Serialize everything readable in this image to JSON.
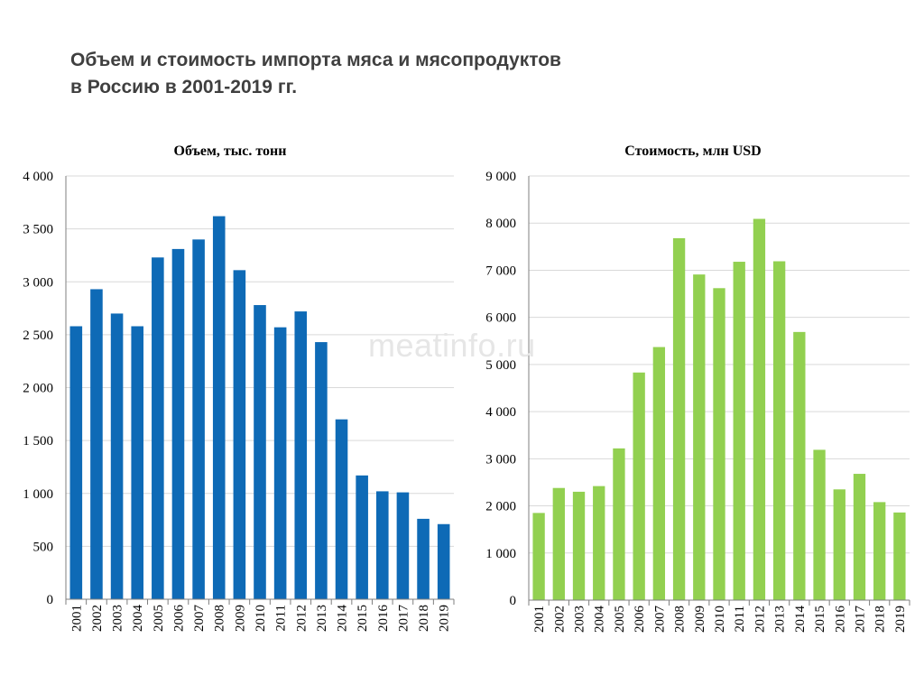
{
  "page": {
    "title_line1": "Объем и стоимость импорта мяса и мясопродуктов",
    "title_line2": "в Россию в 2001-2019 гг.",
    "watermark": "meatinfo.ru"
  },
  "colors": {
    "volume": "#0e6ab6",
    "value": "#92d050",
    "grid": "#d9d9d9",
    "axis": "#7f7f7f",
    "text": "#000000"
  },
  "chart_data": [
    {
      "type": "bar",
      "title": "Объем, тыс. тонн",
      "categories": [
        "2001",
        "2002",
        "2003",
        "2004",
        "2005",
        "2006",
        "2007",
        "2008",
        "2009",
        "2010",
        "2011",
        "2012",
        "2013",
        "2014",
        "2015",
        "2016",
        "2017",
        "2018",
        "2019"
      ],
      "values": [
        2580,
        2930,
        2700,
        2580,
        3230,
        3310,
        3400,
        3620,
        3110,
        2780,
        2570,
        2720,
        2430,
        1700,
        1170,
        1020,
        1010,
        760,
        710
      ],
      "yticks": [
        "0",
        "500",
        "1 000",
        "1 500",
        "2 000",
        "2 500",
        "3 000",
        "3 500",
        "4 000"
      ],
      "ylim": [
        0,
        4000
      ],
      "xlabel": "",
      "ylabel": "",
      "grid": true
    },
    {
      "type": "bar",
      "title": "Стоимость, млн USD",
      "categories": [
        "2001",
        "2002",
        "2003",
        "2004",
        "2005",
        "2006",
        "2007",
        "2008",
        "2009",
        "2010",
        "2011",
        "2012",
        "2013",
        "2014",
        "2015",
        "2016",
        "2017",
        "2018",
        "2019"
      ],
      "values": [
        1850,
        2380,
        2300,
        2420,
        3220,
        4830,
        5370,
        7680,
        6910,
        6620,
        7180,
        8090,
        7190,
        5690,
        3190,
        2350,
        2680,
        2080,
        1860
      ],
      "yticks": [
        "0",
        "1 000",
        "2 000",
        "3 000",
        "4 000",
        "5 000",
        "6 000",
        "7 000",
        "8 000",
        "9 000"
      ],
      "ylim": [
        0,
        9000
      ],
      "xlabel": "",
      "ylabel": "",
      "grid": true
    }
  ]
}
